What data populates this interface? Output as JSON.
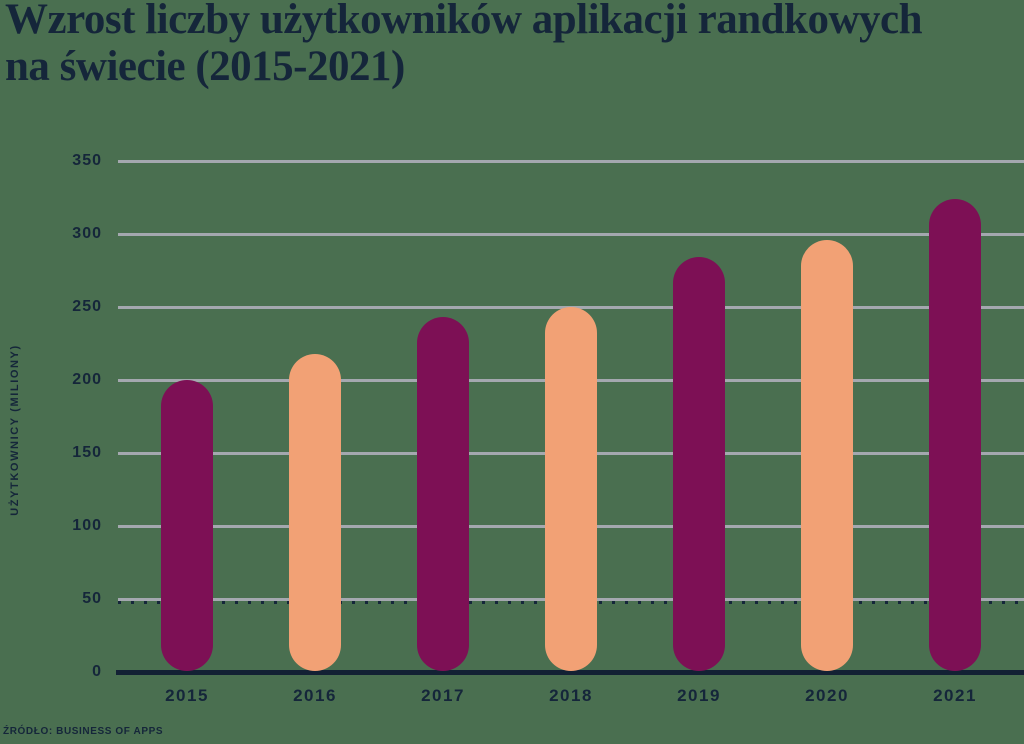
{
  "title": "Wzrost liczby użytkowników aplikacji randkowych na świecie (2015-2021)",
  "source": "ŹRÓDŁO: BUSINESS OF APPS",
  "colors": {
    "background": "#4a6f50",
    "bar_primary": "#7d1055",
    "bar_secondary": "#f2a175",
    "text_navy": "#15263a",
    "gridline_gray": "#a4a8af",
    "axis_navy": "#132134"
  },
  "chart_data": {
    "type": "bar",
    "title": "Wzrost liczby użytkowników aplikacji randkowych na świecie (2015-2021)",
    "categories": [
      "2015",
      "2016",
      "2017",
      "2018",
      "2019",
      "2020",
      "2021"
    ],
    "values": [
      200,
      218,
      243,
      250,
      284,
      296,
      324
    ],
    "bar_color_pattern": [
      "#7d1055",
      "#f2a175"
    ],
    "xlabel": "",
    "ylabel": "UŻYTKOWNICY (MILIONY)",
    "yticks": [
      350,
      300,
      250,
      200,
      150,
      100,
      50,
      0
    ],
    "ylim": [
      0,
      350
    ],
    "grid": true,
    "legend": "none",
    "note": "gridline at 50 has dotted navy underline"
  }
}
